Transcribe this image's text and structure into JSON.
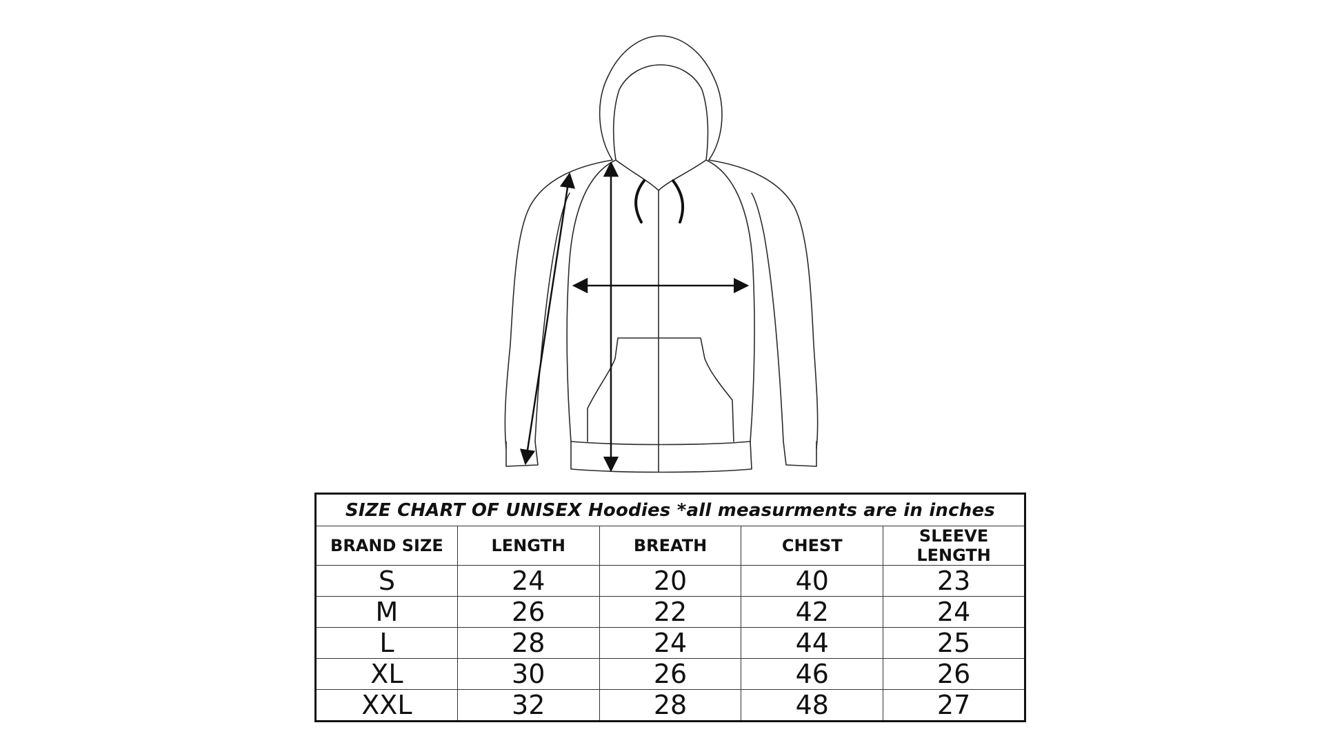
{
  "caption": {
    "bold": "SIZE CHART OF UNISEX",
    "rest": "Hoodies *all measurments are in inches"
  },
  "columns": [
    "BRAND SIZE",
    "LENGTH",
    "BREATH",
    "CHEST",
    "SLEEVE LENGTH"
  ],
  "rows": [
    [
      "S",
      "24",
      "20",
      "40",
      "23"
    ],
    [
      "M",
      "26",
      "22",
      "42",
      "24"
    ],
    [
      "L",
      "28",
      "24",
      "44",
      "25"
    ],
    [
      "XL",
      "30",
      "26",
      "46",
      "26"
    ],
    [
      "XXL",
      "32",
      "28",
      "48",
      "27"
    ]
  ],
  "colors": {
    "line": "#2a2a2a",
    "arrow": "#111111",
    "background": "#ffffff"
  },
  "figure": {
    "icon": "hoodie-outline-illustration"
  }
}
